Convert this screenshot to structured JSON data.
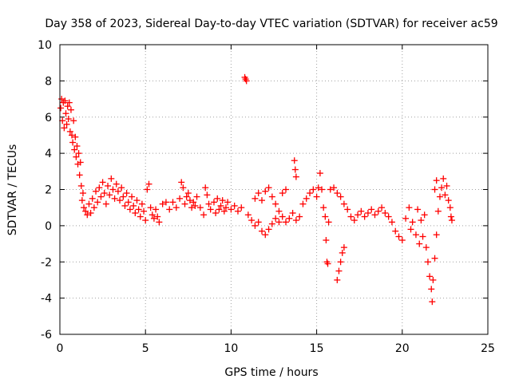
{
  "chart_data": {
    "type": "scatter",
    "title": "Day 358 of 2023, Sidereal Day-to-day VTEC variation (SDTVAR) for receiver ac59",
    "xlabel": "GPS time / hours",
    "ylabel": "SDTVAR / TECUs",
    "xlim": [
      0,
      25
    ],
    "ylim": [
      -6,
      10
    ],
    "x_ticks": [
      0,
      5,
      10,
      15,
      20,
      25
    ],
    "y_ticks": [
      -6,
      -4,
      -2,
      0,
      2,
      4,
      6,
      8,
      10
    ],
    "grid": true,
    "marker": "+",
    "color": "#ff0000",
    "series": [
      {
        "name": "SDTVAR",
        "points": [
          [
            0.05,
            6.5
          ],
          [
            0.1,
            7.0
          ],
          [
            0.15,
            5.8
          ],
          [
            0.2,
            6.8
          ],
          [
            0.25,
            5.4
          ],
          [
            0.3,
            6.9
          ],
          [
            0.35,
            6.2
          ],
          [
            0.4,
            5.6
          ],
          [
            0.45,
            6.6
          ],
          [
            0.5,
            5.9
          ],
          [
            0.55,
            6.8
          ],
          [
            0.6,
            5.2
          ],
          [
            0.65,
            6.4
          ],
          [
            0.7,
            5.0
          ],
          [
            0.75,
            4.6
          ],
          [
            0.8,
            5.8
          ],
          [
            0.85,
            4.2
          ],
          [
            0.9,
            4.9
          ],
          [
            0.95,
            3.8
          ],
          [
            1.0,
            4.4
          ],
          [
            1.05,
            3.4
          ],
          [
            1.1,
            4.0
          ],
          [
            1.15,
            2.8
          ],
          [
            1.2,
            3.5
          ],
          [
            1.25,
            2.2
          ],
          [
            1.3,
            1.4
          ],
          [
            1.35,
            1.8
          ],
          [
            1.4,
            1.0
          ],
          [
            1.5,
            0.8
          ],
          [
            1.6,
            0.6
          ],
          [
            1.7,
            1.2
          ],
          [
            1.8,
            0.7
          ],
          [
            1.9,
            1.5
          ],
          [
            2.0,
            1.0
          ],
          [
            2.1,
            1.9
          ],
          [
            2.2,
            1.3
          ],
          [
            2.3,
            2.1
          ],
          [
            2.4,
            1.6
          ],
          [
            2.5,
            2.4
          ],
          [
            2.6,
            1.8
          ],
          [
            2.7,
            1.2
          ],
          [
            2.8,
            2.2
          ],
          [
            2.9,
            1.7
          ],
          [
            3.0,
            2.6
          ],
          [
            3.1,
            2.0
          ],
          [
            3.2,
            1.5
          ],
          [
            3.3,
            2.3
          ],
          [
            3.4,
            1.9
          ],
          [
            3.5,
            1.4
          ],
          [
            3.6,
            2.1
          ],
          [
            3.7,
            1.6
          ],
          [
            3.8,
            1.1
          ],
          [
            3.9,
            1.8
          ],
          [
            4.0,
            1.3
          ],
          [
            4.1,
            0.9
          ],
          [
            4.2,
            1.6
          ],
          [
            4.3,
            1.1
          ],
          [
            4.4,
            0.7
          ],
          [
            4.5,
            1.4
          ],
          [
            4.6,
            0.9
          ],
          [
            4.7,
            0.5
          ],
          [
            4.8,
            1.2
          ],
          [
            4.9,
            0.8
          ],
          [
            5.0,
            0.3
          ],
          [
            5.1,
            2.0
          ],
          [
            5.2,
            2.3
          ],
          [
            5.3,
            1.0
          ],
          [
            5.4,
            0.6
          ],
          [
            5.5,
            0.4
          ],
          [
            5.6,
            0.9
          ],
          [
            5.7,
            0.5
          ],
          [
            5.8,
            0.2
          ],
          [
            6.0,
            1.2
          ],
          [
            6.2,
            1.3
          ],
          [
            6.4,
            0.9
          ],
          [
            6.6,
            1.3
          ],
          [
            6.8,
            1.0
          ],
          [
            7.0,
            1.5
          ],
          [
            7.1,
            2.4
          ],
          [
            7.2,
            2.1
          ],
          [
            7.3,
            1.2
          ],
          [
            7.4,
            1.6
          ],
          [
            7.5,
            1.8
          ],
          [
            7.6,
            1.4
          ],
          [
            7.7,
            1.0
          ],
          [
            7.8,
            1.3
          ],
          [
            7.9,
            1.1
          ],
          [
            8.0,
            1.6
          ],
          [
            8.2,
            1.0
          ],
          [
            8.4,
            0.6
          ],
          [
            8.5,
            2.1
          ],
          [
            8.6,
            1.7
          ],
          [
            8.7,
            1.2
          ],
          [
            8.8,
            0.9
          ],
          [
            9.0,
            1.3
          ],
          [
            9.1,
            0.7
          ],
          [
            9.2,
            1.5
          ],
          [
            9.3,
            0.9
          ],
          [
            9.4,
            1.1
          ],
          [
            9.5,
            1.4
          ],
          [
            9.6,
            0.8
          ],
          [
            9.7,
            1.0
          ],
          [
            9.8,
            1.3
          ],
          [
            10.0,
            0.9
          ],
          [
            10.2,
            1.1
          ],
          [
            10.4,
            0.8
          ],
          [
            10.6,
            1.0
          ],
          [
            10.85,
            8.1
          ],
          [
            10.9,
            8.0
          ],
          [
            10.8,
            8.2
          ],
          [
            11.0,
            0.6
          ],
          [
            11.2,
            0.3
          ],
          [
            11.4,
            0.0
          ],
          [
            11.6,
            0.2
          ],
          [
            11.8,
            -0.3
          ],
          [
            12.0,
            -0.5
          ],
          [
            12.2,
            -0.2
          ],
          [
            12.4,
            0.1
          ],
          [
            12.6,
            0.4
          ],
          [
            12.8,
            0.2
          ],
          [
            11.4,
            1.5
          ],
          [
            11.6,
            1.8
          ],
          [
            11.8,
            1.4
          ],
          [
            12.0,
            1.9
          ],
          [
            12.2,
            2.1
          ],
          [
            12.4,
            1.6
          ],
          [
            12.6,
            1.2
          ],
          [
            12.8,
            0.8
          ],
          [
            13.0,
            0.5
          ],
          [
            13.2,
            0.2
          ],
          [
            13.4,
            0.4
          ],
          [
            13.6,
            0.7
          ],
          [
            13.8,
            0.3
          ],
          [
            14.0,
            0.5
          ],
          [
            13.2,
            2.0
          ],
          [
            13.0,
            1.8
          ],
          [
            13.7,
            3.6
          ],
          [
            13.75,
            3.1
          ],
          [
            13.8,
            2.7
          ],
          [
            14.2,
            1.2
          ],
          [
            14.4,
            1.5
          ],
          [
            14.6,
            1.8
          ],
          [
            14.8,
            2.0
          ],
          [
            15.0,
            1.6
          ],
          [
            15.1,
            2.1
          ],
          [
            15.2,
            2.9
          ],
          [
            15.3,
            2.0
          ],
          [
            15.4,
            1.0
          ],
          [
            15.5,
            0.5
          ],
          [
            15.55,
            -0.8
          ],
          [
            15.6,
            -2.0
          ],
          [
            15.65,
            -2.1
          ],
          [
            15.7,
            0.2
          ],
          [
            15.8,
            2.0
          ],
          [
            16.0,
            2.1
          ],
          [
            16.2,
            -3.0
          ],
          [
            16.3,
            -2.5
          ],
          [
            16.4,
            -2.0
          ],
          [
            16.5,
            -1.5
          ],
          [
            16.6,
            -1.2
          ],
          [
            16.2,
            1.8
          ],
          [
            16.4,
            1.6
          ],
          [
            16.6,
            1.2
          ],
          [
            16.8,
            0.9
          ],
          [
            17.0,
            0.5
          ],
          [
            17.2,
            0.3
          ],
          [
            17.4,
            0.6
          ],
          [
            17.6,
            0.8
          ],
          [
            17.8,
            0.5
          ],
          [
            18.0,
            0.7
          ],
          [
            18.2,
            0.9
          ],
          [
            18.4,
            0.6
          ],
          [
            18.6,
            0.8
          ],
          [
            18.8,
            1.0
          ],
          [
            19.0,
            0.7
          ],
          [
            19.2,
            0.5
          ],
          [
            19.4,
            0.2
          ],
          [
            19.6,
            -0.3
          ],
          [
            19.8,
            -0.6
          ],
          [
            20.0,
            -0.8
          ],
          [
            20.2,
            0.4
          ],
          [
            20.4,
            1.0
          ],
          [
            20.6,
            0.2
          ],
          [
            20.8,
            -0.5
          ],
          [
            21.0,
            -1.0
          ],
          [
            21.2,
            -0.6
          ],
          [
            21.4,
            -1.2
          ],
          [
            21.5,
            -2.0
          ],
          [
            21.6,
            -2.8
          ],
          [
            21.7,
            -3.5
          ],
          [
            21.75,
            -4.2
          ],
          [
            21.8,
            -3.0
          ],
          [
            21.9,
            -1.8
          ],
          [
            22.0,
            -0.5
          ],
          [
            22.1,
            0.8
          ],
          [
            22.2,
            1.6
          ],
          [
            22.3,
            2.1
          ],
          [
            22.4,
            2.6
          ],
          [
            22.5,
            1.7
          ],
          [
            22.6,
            2.2
          ],
          [
            22.7,
            1.4
          ],
          [
            22.8,
            1.0
          ],
          [
            22.85,
            0.5
          ],
          [
            22.9,
            0.3
          ],
          [
            21.9,
            2.0
          ],
          [
            22.0,
            2.5
          ],
          [
            21.3,
            0.6
          ],
          [
            20.9,
            0.9
          ],
          [
            21.1,
            0.3
          ],
          [
            20.5,
            -0.2
          ]
        ]
      }
    ]
  }
}
